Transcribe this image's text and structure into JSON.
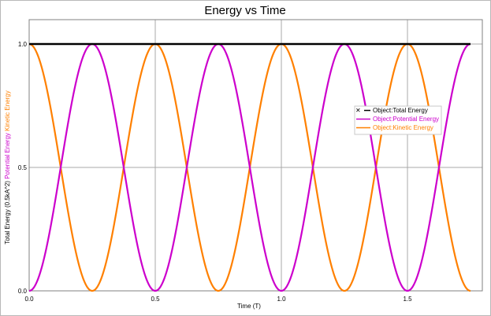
{
  "chart_data": {
    "type": "line",
    "title": "Energy vs Time",
    "xlabel": "Time (T)",
    "ylabel_parts": [
      {
        "text": "Total Energy (0.5kA^2)",
        "color": "#000000"
      },
      {
        "text": "Potential Energy",
        "color": "#cc00cc"
      },
      {
        "text": "Kinetic Energy",
        "color": "#ff8000"
      }
    ],
    "xlim": [
      0,
      1.75
    ],
    "ylim": [
      0,
      1.0
    ],
    "x_ticks": [
      0.0,
      0.5,
      1.0,
      1.5
    ],
    "x_tick_labels": [
      "0.0",
      "0.5",
      "1.0",
      "1.5"
    ],
    "y_ticks": [
      0.0,
      0.5,
      1.0
    ],
    "y_tick_labels": [
      "0.0",
      "0.5",
      "1.0"
    ],
    "grid": true,
    "legend_position": "right",
    "legend_close_symbol": "✕",
    "series": [
      {
        "name": "Object:Total Energy",
        "color": "#000000",
        "formula": "1",
        "width": 2.4
      },
      {
        "name": "Object:Potential Energy",
        "color": "#cc00cc",
        "formula": "sin^2(2*pi*t)",
        "width": 2.2
      },
      {
        "name": "Object:Kinetic Energy",
        "color": "#ff8000",
        "formula": "cos^2(2*pi*t)",
        "width": 2.2
      }
    ]
  }
}
